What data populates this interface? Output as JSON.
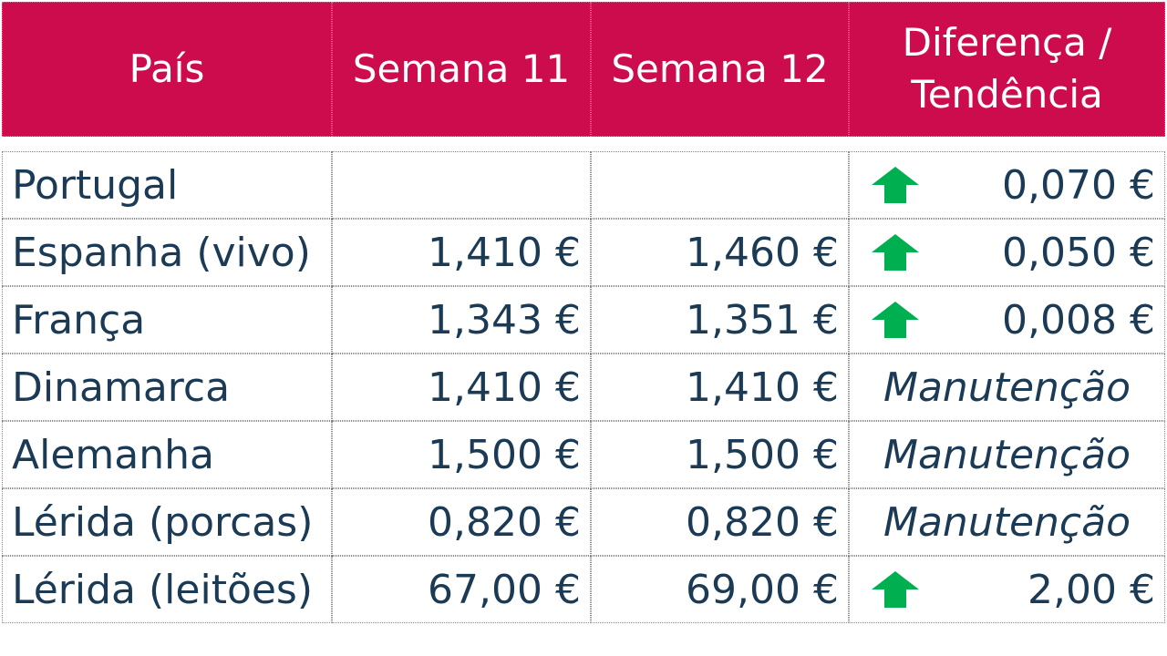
{
  "colors": {
    "header_bg": "#cc0c4c",
    "text": "#1b3a55",
    "arrow_up": "#00b050"
  },
  "headers": [
    "País",
    "Semana 11",
    "Semana 12",
    "Diferença / Tendência"
  ],
  "rows": [
    {
      "pais": "Portugal",
      "semana11": "",
      "semana12": "",
      "trend": "up",
      "diferenca": "0,070 €"
    },
    {
      "pais": "Espanha (vivo)",
      "semana11": "1,410 €",
      "semana12": "1,460 €",
      "trend": "up",
      "diferenca": "0,050 €"
    },
    {
      "pais": "França",
      "semana11": "1,343 €",
      "semana12": "1,351 €",
      "trend": "up",
      "diferenca": "0,008 €"
    },
    {
      "pais": "Dinamarca",
      "semana11": "1,410 €",
      "semana12": "1,410 €",
      "trend": "none",
      "diferenca": "Manutenção"
    },
    {
      "pais": "Alemanha",
      "semana11": "1,500 €",
      "semana12": "1,500 €",
      "trend": "none",
      "diferenca": "Manutenção"
    },
    {
      "pais": "Lérida (porcas)",
      "semana11": "0,820 €",
      "semana12": "0,820 €",
      "trend": "none",
      "diferenca": "Manutenção"
    },
    {
      "pais": "Lérida (leitões)",
      "semana11": "67,00 €",
      "semana12": "69,00 €",
      "trend": "up",
      "diferenca": "2,00 €"
    }
  ]
}
